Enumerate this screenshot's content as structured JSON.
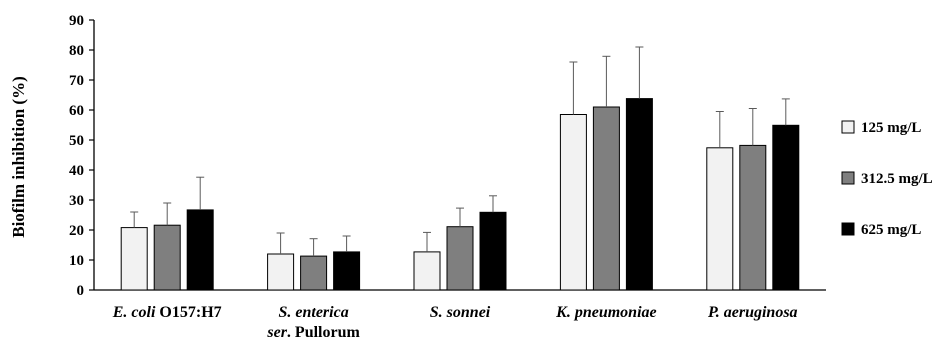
{
  "chart_data": {
    "type": "bar",
    "ylabel": "Biofilm inhibition (%)",
    "ylim": [
      0,
      90
    ],
    "yticks": [
      0,
      10,
      20,
      30,
      40,
      50,
      60,
      70,
      80,
      90
    ],
    "grid": false,
    "legend_position": "right",
    "categories": [
      {
        "parts": [
          {
            "text": "E. coli",
            "italic": true
          },
          {
            "text": " O157:H7",
            "italic": false
          }
        ]
      },
      {
        "parts": [
          {
            "text": "S. enterica",
            "italic": true
          }
        ],
        "line2": [
          {
            "text": "ser",
            "italic": true
          },
          {
            "text": ". Pullorum",
            "italic": false
          }
        ]
      },
      {
        "parts": [
          {
            "text": "S. sonnei",
            "italic": true
          }
        ]
      },
      {
        "parts": [
          {
            "text": "K. pneumoniae",
            "italic": true
          }
        ]
      },
      {
        "parts": [
          {
            "text": "P. aeruginosa",
            "italic": true
          }
        ]
      }
    ],
    "series": [
      {
        "name": "125 mg/L",
        "color": "#f2f2f2",
        "values": [
          20.8,
          12.0,
          12.7,
          58.5,
          47.4
        ],
        "errors": [
          5.2,
          7.0,
          6.5,
          17.5,
          12.1
        ]
      },
      {
        "name": "312.5 mg/L",
        "color": "#7f7f7f",
        "values": [
          21.6,
          11.3,
          21.1,
          61.0,
          48.2
        ],
        "errors": [
          7.4,
          5.8,
          6.2,
          16.9,
          12.3
        ]
      },
      {
        "name": "625 mg/L",
        "color": "#000000",
        "values": [
          26.7,
          12.7,
          25.9,
          63.8,
          54.9
        ],
        "errors": [
          10.9,
          5.3,
          5.5,
          17.2,
          8.8
        ]
      }
    ]
  }
}
